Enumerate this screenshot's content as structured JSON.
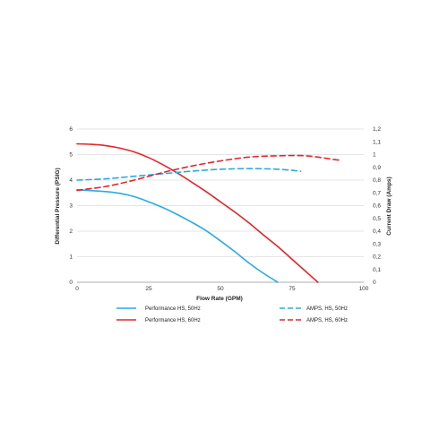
{
  "chart_data": {
    "type": "line",
    "title": "",
    "xlabel": "Flow Rate (GPM)",
    "ylabel": "Differential Pressure (PSIG)",
    "y2label": "Current Draw (Amps)",
    "xlim": [
      0,
      100
    ],
    "ylim": [
      0,
      6
    ],
    "y2lim": [
      0,
      1.2
    ],
    "xticks": [
      "0",
      "25",
      "50",
      "75",
      "100"
    ],
    "yticks": [
      "0",
      "1",
      "2",
      "3",
      "4",
      "5",
      "6"
    ],
    "y2ticks": [
      "0",
      "0,1",
      "0,2",
      "0,3",
      "0,4",
      "0,5",
      "0,6",
      "0,7",
      "0,8",
      "0,9",
      "1",
      "1,1",
      "1,2"
    ],
    "grid": "horizontal",
    "legend_position": "bottom",
    "colors": {
      "blue": "#29abe2",
      "red": "#e2262b"
    },
    "series": [
      {
        "name": "Performance HS, 50Hz",
        "axis": "left",
        "style": "solid",
        "color": "#29abe2",
        "x": [
          0,
          10,
          15,
          20,
          25,
          30,
          35,
          40,
          45,
          50,
          55,
          60,
          65,
          70
        ],
        "y": [
          3.62,
          3.55,
          3.48,
          3.35,
          3.15,
          2.92,
          2.65,
          2.35,
          2.02,
          1.62,
          1.2,
          0.75,
          0.35,
          0
        ]
      },
      {
        "name": "Performance HS, 60Hz",
        "axis": "left",
        "style": "solid",
        "color": "#e2262b",
        "x": [
          0,
          5,
          10,
          15,
          20,
          25,
          30,
          35,
          40,
          45,
          50,
          55,
          60,
          65,
          70,
          75,
          80,
          84
        ],
        "y": [
          5.42,
          5.4,
          5.35,
          5.25,
          5.1,
          4.88,
          4.6,
          4.28,
          3.92,
          3.55,
          3.15,
          2.75,
          2.32,
          1.85,
          1.4,
          0.9,
          0.4,
          0
        ]
      },
      {
        "name": "AMPS, HS, 50Hz",
        "axis": "right",
        "style": "dashed",
        "color": "#29abe2",
        "x": [
          0,
          10,
          20,
          30,
          40,
          50,
          60,
          70,
          78
        ],
        "y": [
          0.8,
          0.81,
          0.83,
          0.85,
          0.87,
          0.885,
          0.89,
          0.885,
          0.87
        ]
      },
      {
        "name": "AMPS, HS, 60Hz",
        "axis": "right",
        "style": "dashed",
        "color": "#e2262b",
        "x": [
          0,
          10,
          20,
          30,
          40,
          50,
          60,
          70,
          80,
          90,
          92
        ],
        "y": [
          0.72,
          0.75,
          0.8,
          0.86,
          0.91,
          0.95,
          0.98,
          0.99,
          0.99,
          0.96,
          0.955
        ]
      }
    ]
  }
}
